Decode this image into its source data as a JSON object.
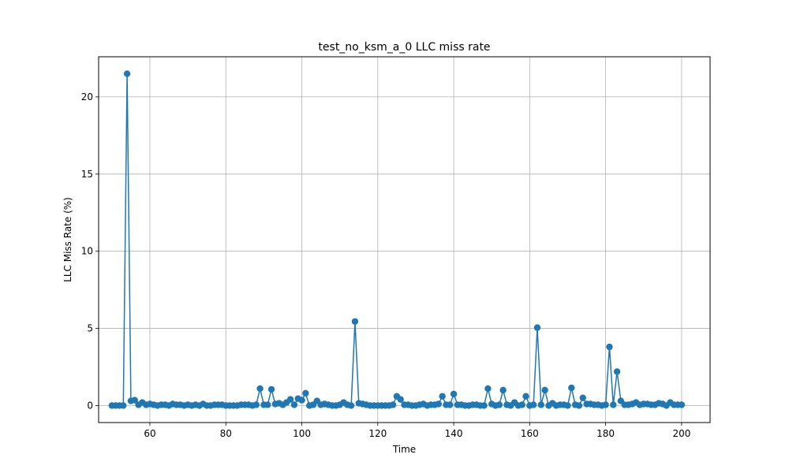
{
  "chart_data": {
    "type": "line",
    "title": "test_no_ksm_a_0 LLC miss rate",
    "xlabel": "Time",
    "ylabel": "LLC Miss Rate (%)",
    "xlim": [
      46.5,
      207.5
    ],
    "ylim": [
      -1.1,
      22.6
    ],
    "xticks": [
      60,
      80,
      100,
      120,
      140,
      160,
      180,
      200
    ],
    "yticks": [
      0,
      5,
      10,
      15,
      20
    ],
    "grid": true,
    "line_color": "#1f77b4",
    "series": [
      {
        "name": "",
        "x": [
          50,
          51,
          52,
          53,
          54,
          55,
          56,
          57,
          58,
          59,
          60,
          61,
          62,
          63,
          64,
          65,
          66,
          67,
          68,
          69,
          70,
          71,
          72,
          73,
          74,
          75,
          76,
          77,
          78,
          79,
          80,
          81,
          82,
          83,
          84,
          85,
          86,
          87,
          88,
          89,
          90,
          91,
          92,
          93,
          94,
          95,
          96,
          97,
          98,
          99,
          100,
          101,
          102,
          103,
          104,
          105,
          106,
          107,
          108,
          109,
          110,
          111,
          112,
          113,
          114,
          115,
          116,
          117,
          118,
          119,
          120,
          121,
          122,
          123,
          124,
          125,
          126,
          127,
          128,
          129,
          130,
          131,
          132,
          133,
          134,
          135,
          136,
          137,
          138,
          139,
          140,
          141,
          142,
          143,
          144,
          145,
          146,
          147,
          148,
          149,
          150,
          151,
          152,
          153,
          154,
          155,
          156,
          157,
          158,
          159,
          160,
          161,
          162,
          163,
          164,
          165,
          166,
          167,
          168,
          169,
          170,
          171,
          172,
          173,
          174,
          175,
          176,
          177,
          178,
          179,
          180,
          181,
          182,
          183,
          184,
          185,
          186,
          187,
          188,
          189,
          190,
          191,
          192,
          193,
          194,
          195,
          196,
          197,
          198,
          199,
          200
        ],
        "y": [
          0.0,
          0.0,
          0.0,
          0.0,
          21.5,
          0.3,
          0.35,
          0.05,
          0.2,
          0.05,
          0.1,
          0.05,
          0.0,
          0.05,
          0.05,
          0.0,
          0.1,
          0.05,
          0.05,
          0.0,
          0.05,
          0.0,
          0.05,
          0.0,
          0.1,
          0.0,
          0.0,
          0.05,
          0.05,
          0.05,
          0.0,
          0.0,
          0.0,
          0.0,
          0.05,
          0.05,
          0.05,
          0.0,
          0.05,
          1.1,
          0.05,
          0.05,
          1.05,
          0.1,
          0.15,
          0.05,
          0.2,
          0.4,
          0.05,
          0.45,
          0.35,
          0.8,
          0.0,
          0.05,
          0.3,
          0.05,
          0.1,
          0.05,
          0.0,
          0.0,
          0.05,
          0.2,
          0.05,
          0.0,
          5.45,
          0.15,
          0.1,
          0.05,
          0.0,
          0.0,
          0.0,
          0.0,
          0.0,
          0.0,
          0.05,
          0.6,
          0.4,
          0.05,
          0.05,
          0.0,
          0.0,
          0.05,
          0.1,
          0.0,
          0.05,
          0.05,
          0.1,
          0.6,
          0.05,
          0.05,
          0.75,
          0.05,
          0.05,
          0.0,
          0.0,
          0.05,
          0.05,
          0.0,
          0.0,
          1.1,
          0.1,
          0.0,
          0.05,
          1.0,
          0.05,
          0.0,
          0.2,
          0.0,
          0.05,
          0.6,
          0.0,
          0.05,
          5.05,
          0.05,
          1.0,
          0.0,
          0.15,
          0.0,
          0.05,
          0.05,
          0.0,
          1.15,
          0.05,
          0.0,
          0.5,
          0.1,
          0.1,
          0.05,
          0.05,
          0.0,
          0.05,
          3.8,
          0.05,
          2.2,
          0.3,
          0.05,
          0.05,
          0.1,
          0.2,
          0.05,
          0.1,
          0.1,
          0.05,
          0.05,
          0.15,
          0.1,
          0.0,
          0.2,
          0.05,
          0.05,
          0.05
        ]
      }
    ]
  }
}
